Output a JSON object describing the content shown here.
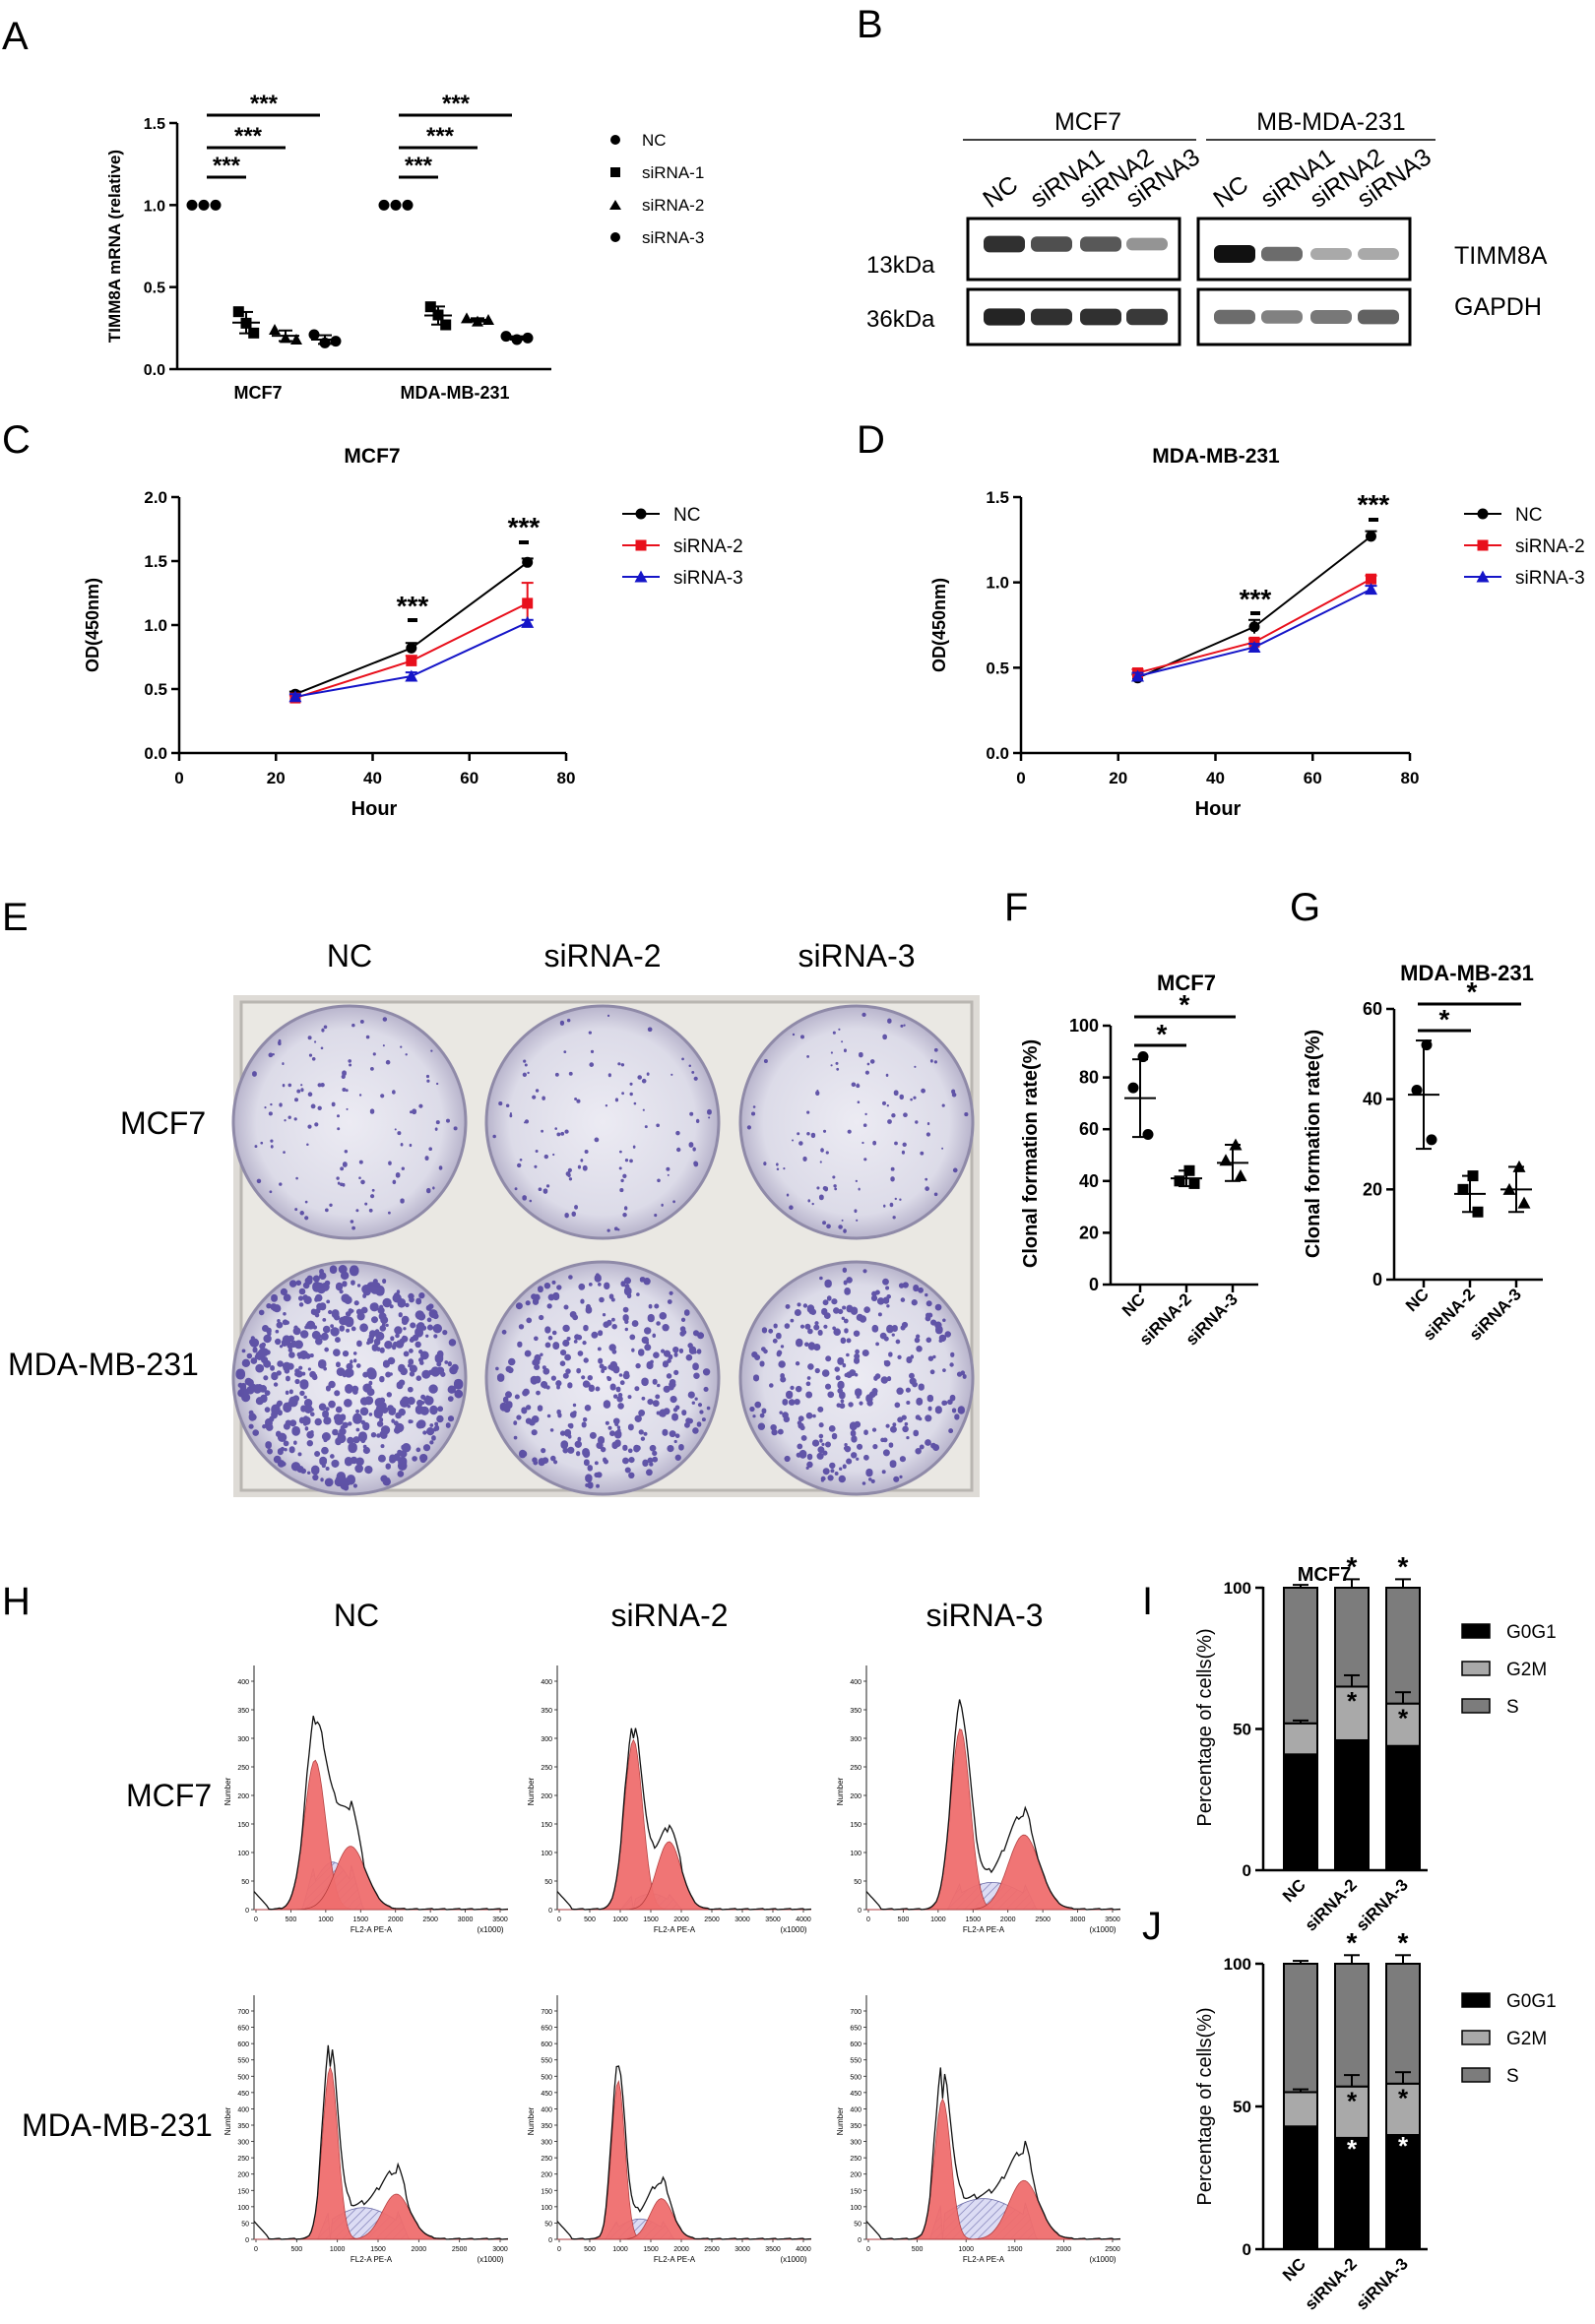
{
  "panels": {
    "A": "A",
    "B": "B",
    "C": "C",
    "D": "D",
    "E": "E",
    "F": "F",
    "G": "G",
    "H": "H",
    "I": "I",
    "J": "J"
  },
  "sig": {
    "three": "***",
    "one": "*"
  },
  "colors": {
    "nc": "#000000",
    "si2": "#e8101c",
    "si3": "#1515c8",
    "g0g1": "#000000",
    "g2m": "#a9a9a9",
    "s": "#7c7c7c",
    "stain": "#4b3d9c",
    "peak": "#f06e6e"
  },
  "blot": {
    "groups": [
      "MCF7",
      "MB-MDA-231"
    ],
    "lanes_mcf7": [
      "NC",
      "siRNA1",
      "siRNA2",
      "siRNA3"
    ],
    "lanes_mda": [
      "NC",
      "siRNA1",
      "siRNA2",
      "siRNA3"
    ],
    "mw": [
      "13kDa",
      "36kDa"
    ],
    "proteins": [
      "TIMM8A",
      "GAPDH"
    ],
    "intensity_mcf7": [
      0.85,
      0.7,
      0.65,
      0.35
    ],
    "intensity_mda": [
      1.0,
      0.55,
      0.25,
      0.25
    ]
  },
  "colony": {
    "columns": [
      "NC",
      "siRNA-2",
      "siRNA-3"
    ],
    "rows": [
      "MCF7",
      "MDA-MB-231"
    ],
    "density_mcf7": [
      0.45,
      0.4,
      0.42
    ],
    "density_mda": [
      1.0,
      0.6,
      0.55
    ]
  },
  "flow": {
    "columns": [
      "NC",
      "siRNA-2",
      "siRNA-3"
    ],
    "rows": [
      "MCF7",
      "MDA-MB-231"
    ],
    "xlabel": "FL2-A PE-A",
    "xunit": "(x1000)",
    "ylabel": "Number",
    "row1_yticks": [
      "0",
      "50",
      "100",
      "150",
      "200",
      "250",
      "300",
      "350",
      "400"
    ],
    "row2_yticks": [
      "0",
      "50",
      "100",
      "150",
      "200",
      "250",
      "300",
      "350",
      "400",
      "450",
      "500",
      "550",
      "600",
      "650",
      "700"
    ],
    "row1_xticks": [
      [
        "0",
        "500",
        "1000",
        "1500",
        "2000",
        "2500",
        "3000",
        "3500"
      ],
      [
        "0",
        "500",
        "1000",
        "1500",
        "2000",
        "2500",
        "3000",
        "3500",
        "4000"
      ],
      [
        "0",
        "500",
        "1000",
        "1500",
        "2000",
        "2500",
        "3000",
        "3500"
      ]
    ],
    "row2_xticks": [
      [
        "0",
        "500",
        "1000",
        "1500",
        "2000",
        "2500",
        "3000"
      ],
      [
        "0",
        "500",
        "1000",
        "1500",
        "2000",
        "2500",
        "3000",
        "3500",
        "4000"
      ],
      [
        "0",
        "500",
        "1000",
        "1500",
        "2000",
        "2500"
      ]
    ]
  },
  "chart_data": [
    {
      "id": "A",
      "type": "scatter",
      "title": "",
      "ylabel": "TIMM8A mRNA (relative)",
      "xlabel": "",
      "categories": [
        "MCF7",
        "MDA-MB-231"
      ],
      "ylim": [
        0,
        1.5
      ],
      "yticks": [
        "0.0",
        "0.5",
        "1.0",
        "1.5"
      ],
      "legend": [
        "NC",
        "siRNA-1",
        "siRNA-2",
        "siRNA-3"
      ],
      "series": [
        {
          "name": "NC",
          "values": [
            [
              1.0,
              1.0,
              1.0
            ],
            [
              1.0,
              1.0,
              1.0
            ]
          ]
        },
        {
          "name": "siRNA-1",
          "values": [
            [
              0.35,
              0.28,
              0.22
            ],
            [
              0.38,
              0.33,
              0.27
            ]
          ]
        },
        {
          "name": "siRNA-2",
          "values": [
            [
              0.24,
              0.19,
              0.18
            ],
            [
              0.31,
              0.29,
              0.3
            ]
          ]
        },
        {
          "name": "siRNA-3",
          "values": [
            [
              0.21,
              0.16,
              0.17
            ],
            [
              0.2,
              0.18,
              0.19
            ]
          ]
        }
      ]
    },
    {
      "id": "C",
      "type": "line",
      "title": "MCF7",
      "xlabel": "Hour",
      "ylabel": "OD(450nm)",
      "xlim": [
        0,
        80
      ],
      "ylim": [
        0,
        2.0
      ],
      "xticks": [
        "0",
        "20",
        "40",
        "60",
        "80"
      ],
      "yticks": [
        "0.0",
        "0.5",
        "1.0",
        "1.5",
        "2.0"
      ],
      "x": [
        24,
        48,
        72
      ],
      "series": [
        {
          "name": "NC",
          "values": [
            0.46,
            0.82,
            1.49
          ],
          "err": [
            0.02,
            0.04,
            0.03
          ]
        },
        {
          "name": "siRNA-2",
          "values": [
            0.43,
            0.72,
            1.17
          ],
          "err": [
            0.02,
            0.04,
            0.16
          ]
        },
        {
          "name": "siRNA-3",
          "values": [
            0.44,
            0.6,
            1.02
          ],
          "err": [
            0.02,
            0.03,
            0.02
          ]
        }
      ]
    },
    {
      "id": "D",
      "type": "line",
      "title": "MDA-MB-231",
      "xlabel": "Hour",
      "ylabel": "OD(450nm)",
      "xlim": [
        0,
        80
      ],
      "ylim": [
        0,
        1.5
      ],
      "xticks": [
        "0",
        "20",
        "40",
        "60",
        "80"
      ],
      "yticks": [
        "0.0",
        "0.5",
        "1.0",
        "1.5"
      ],
      "x": [
        24,
        48,
        72
      ],
      "series": [
        {
          "name": "NC",
          "values": [
            0.44,
            0.74,
            1.27
          ],
          "err": [
            0.02,
            0.04,
            0.03
          ]
        },
        {
          "name": "siRNA-2",
          "values": [
            0.47,
            0.65,
            1.02
          ],
          "err": [
            0.02,
            0.02,
            0.02
          ]
        },
        {
          "name": "siRNA-3",
          "values": [
            0.45,
            0.62,
            0.96
          ],
          "err": [
            0.02,
            0.02,
            0.02
          ]
        }
      ]
    },
    {
      "id": "F",
      "type": "scatter",
      "title": "MCF7",
      "ylabel": "Clonal formation rate(%)",
      "categories": [
        "NC",
        "siRNA-2",
        "siRNA-3"
      ],
      "ylim": [
        0,
        100
      ],
      "yticks": [
        "0",
        "20",
        "40",
        "60",
        "80",
        "100"
      ],
      "points": [
        [
          88,
          76,
          58
        ],
        [
          44,
          40,
          39
        ],
        [
          54,
          48,
          42
        ]
      ],
      "means": [
        72,
        41,
        47
      ],
      "sd": [
        15,
        3,
        7
      ]
    },
    {
      "id": "G",
      "type": "scatter",
      "title": "MDA-MB-231",
      "ylabel": "Clonal formation rate(%)",
      "categories": [
        "NC",
        "siRNA-2",
        "siRNA-3"
      ],
      "ylim": [
        0,
        60
      ],
      "yticks": [
        "0",
        "20",
        "40",
        "60"
      ],
      "points": [
        [
          52,
          42,
          31
        ],
        [
          23,
          20,
          15
        ],
        [
          25,
          20,
          17
        ]
      ],
      "means": [
        41,
        19,
        20
      ],
      "sd": [
        12,
        4,
        5
      ]
    },
    {
      "id": "I",
      "type": "bar",
      "title": "MCF7",
      "ylabel": "Percentage of cells(%)",
      "categories": [
        "NC",
        "siRNA-2",
        "siRNA-3"
      ],
      "ylim": [
        0,
        100
      ],
      "yticks": [
        "0",
        "50",
        "100"
      ],
      "legend": [
        "G0G1",
        "G2M",
        "S"
      ],
      "series": [
        {
          "name": "G0G1",
          "values": [
            41,
            46,
            44
          ]
        },
        {
          "name": "G2M",
          "values": [
            11,
            19,
            15
          ]
        },
        {
          "name": "S",
          "values": [
            48,
            35,
            41
          ]
        }
      ]
    },
    {
      "id": "J",
      "type": "bar",
      "title": "",
      "ylabel": "Percentage of cells(%)",
      "categories": [
        "NC",
        "siRNA-2",
        "siRNA-3"
      ],
      "ylim": [
        0,
        100
      ],
      "yticks": [
        "0",
        "50",
        "100"
      ],
      "legend": [
        "G0G1",
        "G2M",
        "S"
      ],
      "series": [
        {
          "name": "G0G1",
          "values": [
            43,
            39,
            40
          ]
        },
        {
          "name": "G2M",
          "values": [
            12,
            18,
            18
          ]
        },
        {
          "name": "S",
          "values": [
            45,
            43,
            42
          ]
        }
      ]
    }
  ]
}
